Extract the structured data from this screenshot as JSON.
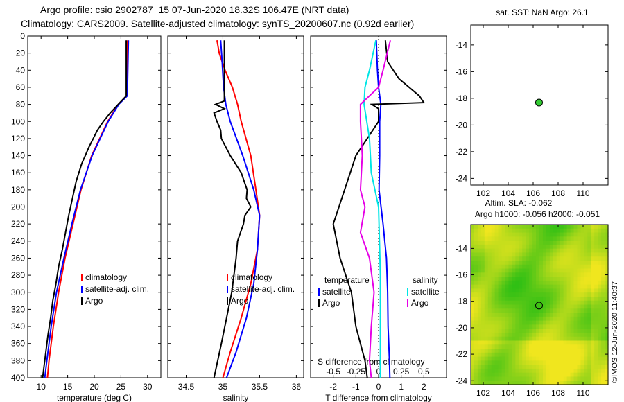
{
  "header": {
    "title_line1": "Argo profile: csio 2902787_15 07-Jun-2020 18.32S 106.47E (NRT data)",
    "title_line2": "Climatology: CARS2009. Satellite-adjusted climatology: synTS_20200607.nc (0.92d earlier)"
  },
  "credit": "©IMOS 12-Jun-2020 11:40:37",
  "colors": {
    "climatology": "#ff0000",
    "satellite": "#0000ff",
    "argo": "#000000",
    "cyan": "#00e5e5",
    "magenta": "#e600e6",
    "marker": "#33cc33"
  },
  "chart_data": [
    {
      "id": "temperature",
      "type": "line",
      "xlabel": "temperature (deg C)",
      "ylabel": "",
      "xlim": [
        7.5,
        32.5
      ],
      "ylim": [
        400,
        0
      ],
      "x_ticks": [
        10,
        15,
        20,
        25,
        30
      ],
      "y_ticks": [
        0,
        20,
        40,
        60,
        80,
        100,
        120,
        140,
        160,
        180,
        200,
        220,
        240,
        260,
        280,
        300,
        320,
        340,
        360,
        380,
        400
      ],
      "legend": [
        "climatology",
        "satellite-adj. clim.",
        "Argo"
      ],
      "series": [
        {
          "name": "climatology",
          "color": "#ff0000",
          "depth": [
            5,
            70,
            80,
            100,
            140,
            180,
            220,
            260,
            300,
            340,
            380,
            400
          ],
          "values": [
            26.2,
            26.1,
            24.5,
            22.5,
            19.5,
            17.5,
            16,
            14.5,
            13.3,
            12.3,
            11.5,
            11.2
          ]
        },
        {
          "name": "satellite-adj. clim.",
          "color": "#0000ff",
          "depth": [
            5,
            70,
            80,
            100,
            140,
            180,
            220,
            260,
            300,
            340,
            380,
            400
          ],
          "values": [
            26.4,
            26.2,
            24.6,
            22.6,
            19.6,
            17.4,
            15.8,
            14.3,
            12.9,
            11.9,
            11.1,
            10.7
          ]
        },
        {
          "name": "Argo",
          "color": "#000000",
          "depth": [
            5,
            70,
            78,
            90,
            100,
            110,
            130,
            150,
            170,
            190,
            210,
            230,
            250,
            270,
            290,
            310,
            330,
            350,
            370,
            390,
            400
          ],
          "values": [
            26,
            26,
            24.8,
            23,
            21.7,
            20.6,
            19,
            17.6,
            16.6,
            15.9,
            15.2,
            14.6,
            14,
            13.3,
            12.8,
            12.2,
            11.8,
            11.3,
            10.9,
            10.5,
            10.3
          ]
        }
      ]
    },
    {
      "id": "salinity",
      "type": "line",
      "xlabel": "salinity",
      "ylabel": "",
      "xlim": [
        34.25,
        36.1
      ],
      "ylim": [
        400,
        0
      ],
      "x_ticks": [
        34.5,
        35,
        35.5,
        36
      ],
      "y_ticks": [
        0,
        20,
        40,
        60,
        80,
        100,
        120,
        140,
        160,
        180,
        200,
        220,
        240,
        260,
        280,
        300,
        320,
        340,
        360,
        380,
        400
      ],
      "legend": [
        "climatology",
        "satellite-adj. clim.",
        "Argo"
      ],
      "series": [
        {
          "name": "climatology",
          "color": "#ff0000",
          "depth": [
            5,
            20,
            40,
            60,
            80,
            100,
            140,
            180,
            210,
            250,
            290,
            330,
            370,
            400
          ],
          "values": [
            34.92,
            34.95,
            35.03,
            35.13,
            35.2,
            35.25,
            35.38,
            35.45,
            35.5,
            35.47,
            35.38,
            35.25,
            35.1,
            35
          ],
          "_": 0
        },
        {
          "name": "satellite-adj. clim.",
          "color": "#0000ff",
          "depth": [
            5,
            30,
            60,
            80,
            100,
            140,
            180,
            210,
            250,
            290,
            330,
            370,
            400
          ],
          "values": [
            34.97,
            34.99,
            35.01,
            35.04,
            35.1,
            35.27,
            35.42,
            35.5,
            35.47,
            35.42,
            35.32,
            35.18,
            35.05
          ],
          "_": 0
        },
        {
          "name": "Argo",
          "color": "#000000",
          "depth": [
            5,
            76,
            80,
            85,
            90,
            100,
            110,
            120,
            140,
            160,
            180,
            190,
            200,
            210,
            220,
            240,
            260,
            280,
            300,
            330,
            360,
            400
          ],
          "values": [
            35.02,
            35.02,
            34.9,
            35.02,
            34.88,
            34.92,
            34.97,
            34.98,
            35.1,
            35.25,
            35.33,
            35.32,
            35.38,
            35.3,
            35.28,
            35.2,
            35.18,
            35.15,
            35.12,
            35.05,
            34.98,
            34.88
          ],
          "_": 0
        }
      ]
    },
    {
      "id": "differences",
      "type": "line",
      "xlabel": "T difference from climatology",
      "xlabel_top": "S difference from climatology",
      "xlim": [
        -3,
        3
      ],
      "ylim": [
        400,
        0
      ],
      "x_ticks": [
        -2,
        -1,
        0,
        1,
        2
      ],
      "x_ticks_top": [
        "-0.5",
        "-0.25",
        "0",
        "0.25",
        "0.5"
      ],
      "legend_temperature": {
        "title": "temperature",
        "items": [
          "satellite",
          "Argo"
        ]
      },
      "legend_salinity": {
        "title": "salinity",
        "items": [
          "satellite",
          "Argo"
        ]
      },
      "series": [
        {
          "name": "T satellite",
          "color": "#0000ff",
          "depth": [
            5,
            40,
            60,
            80,
            100,
            140,
            180,
            220,
            260,
            300,
            340,
            380,
            400
          ],
          "values": [
            -0.1,
            -0.05,
            0,
            0.1,
            0.05,
            0.05,
            0.02,
            0.2,
            0.35,
            0.4,
            0.42,
            0.48,
            0.5
          ]
        },
        {
          "name": "T Argo",
          "color": "#000000",
          "depth": [
            5,
            30,
            50,
            70,
            78,
            80,
            85,
            100,
            140,
            180,
            220,
            260,
            300,
            340,
            380,
            400
          ],
          "values": [
            0.3,
            0.4,
            0.9,
            1.8,
            2,
            -0.3,
            0,
            0,
            -1,
            -1.5,
            -2,
            -1.7,
            -1.2,
            -1,
            -0.6,
            -0.5
          ]
        },
        {
          "name": "S satellite",
          "color": "#00e5e5",
          "depth": [
            5,
            40,
            60,
            80,
            120,
            160,
            200,
            240,
            280,
            320,
            360,
            400
          ],
          "values": [
            -0.03,
            -0.1,
            -0.15,
            -0.16,
            -0.1,
            -0.08,
            0,
            0.01,
            0.02,
            0.02,
            0.02,
            0.02
          ]
        },
        {
          "name": "S Argo",
          "color": "#e600e6",
          "depth": [
            5,
            40,
            60,
            70,
            80,
            100,
            140,
            180,
            200,
            230,
            260,
            300,
            340,
            380,
            400
          ],
          "values": [
            0.13,
            0.05,
            0,
            -0.1,
            -0.2,
            -0.2,
            -0.18,
            -0.2,
            -0.15,
            -0.2,
            -0.1,
            -0.05,
            -0.08,
            -0.1,
            -0.08
          ]
        }
      ]
    },
    {
      "id": "sst_map",
      "type": "scatter",
      "title": "sat. SST: NaN Argo: 26.1",
      "xlim": [
        101,
        112
      ],
      "ylim": [
        -24.5,
        -12.5
      ],
      "x_ticks": [
        102,
        104,
        106,
        108,
        110
      ],
      "y_ticks": [
        -14,
        -16,
        -18,
        -20,
        -22,
        -24
      ],
      "point": {
        "lon": 106.47,
        "lat": -18.32
      }
    },
    {
      "id": "sla_map",
      "type": "heatmap",
      "title": "Altim. SLA: -0.062",
      "subtitle": "Argo h1000: -0.056 h2000: -0.051",
      "xlim": [
        101,
        112
      ],
      "ylim": [
        -24.3,
        -12.2
      ],
      "x_ticks": [
        102,
        104,
        106,
        108,
        110
      ],
      "y_ticks": [
        -14,
        -16,
        -18,
        -20,
        -22,
        -24
      ],
      "point": {
        "lon": 106.47,
        "lat": -18.32
      }
    }
  ]
}
